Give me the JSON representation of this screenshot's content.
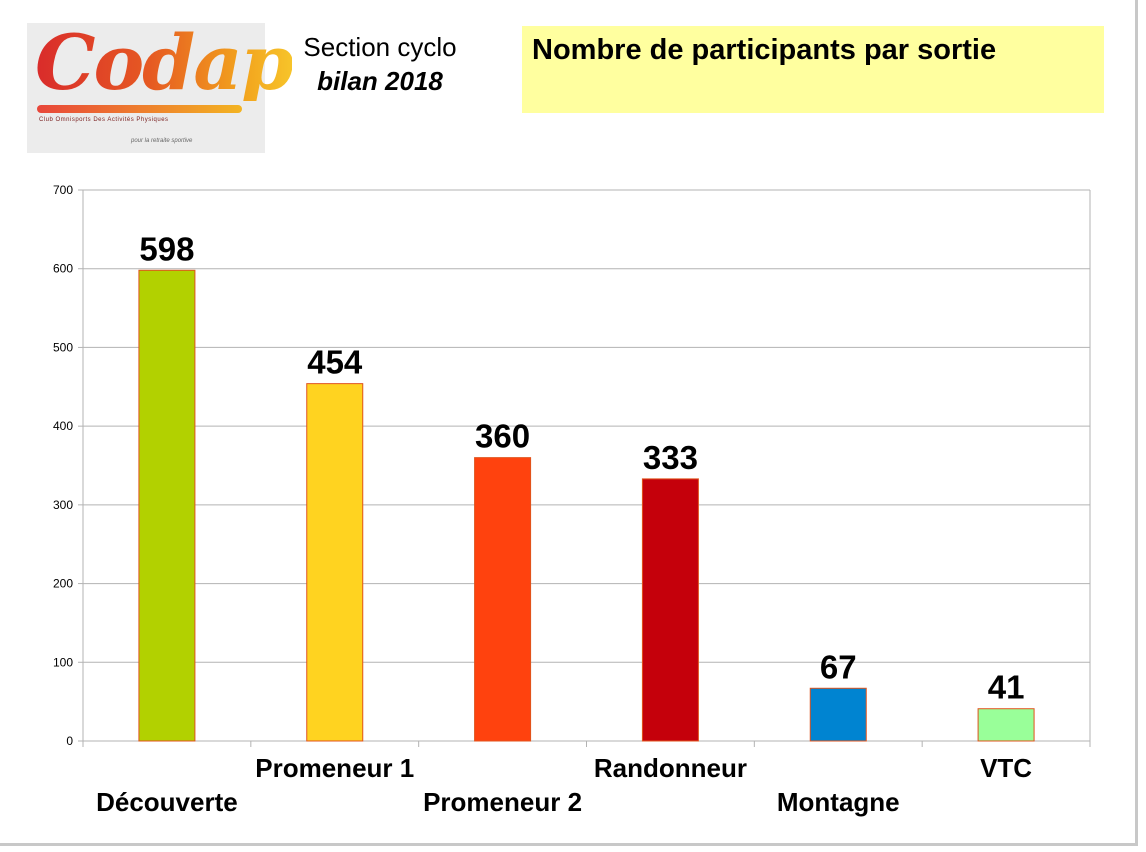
{
  "logo": {
    "word": "Codap",
    "subtitle": "Club Omnisports Des Activités Physiques",
    "tagline": "pour la retraite sportive"
  },
  "header": {
    "section_line1": "Section cyclo",
    "section_line2": "bilan 2018"
  },
  "chart_data": {
    "type": "bar",
    "title": "Nombre de participants par sortie",
    "xlabel": "",
    "ylabel": "",
    "categories": [
      "Découverte",
      "Promeneur 1",
      "Promeneur 2",
      "Randonneur",
      "Montagne",
      "VTC"
    ],
    "values": [
      598,
      454,
      360,
      333,
      67,
      41
    ],
    "colors": [
      "#b2d100",
      "#ffd320",
      "#ff420e",
      "#c5000b",
      "#0084d1",
      "#99ff99"
    ],
    "bar_outline": "#e0531c",
    "ylim": [
      0,
      700
    ],
    "yticks": [
      0,
      100,
      200,
      300,
      400,
      500,
      600,
      700
    ],
    "grid": true,
    "legend": "none",
    "data_labels": true
  }
}
